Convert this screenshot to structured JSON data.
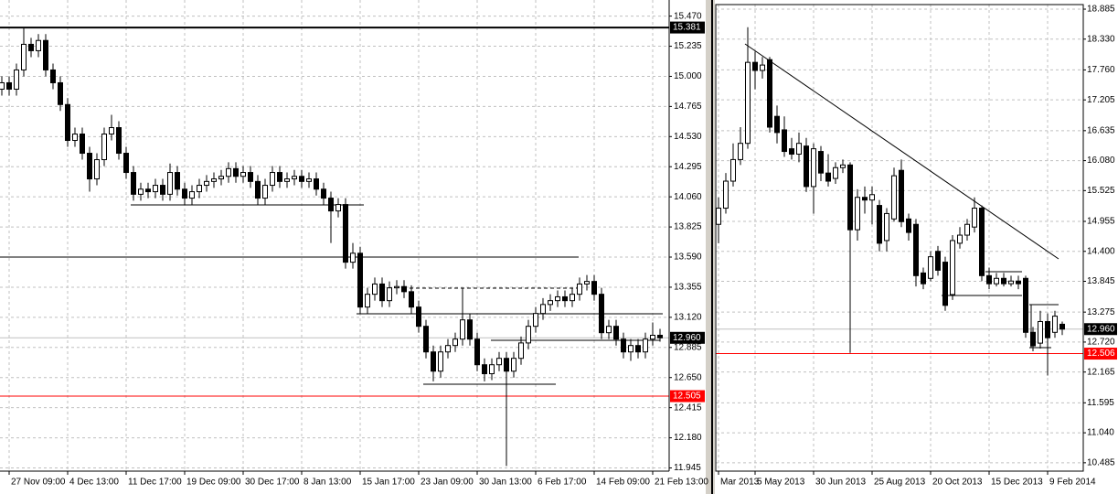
{
  "chart_data": [
    {
      "type": "candlestick",
      "categories": [
        null,
        "27 Nov 09:00",
        null,
        null,
        null,
        null,
        null,
        null,
        null,
        "4 Dec 13:00",
        null,
        null,
        null,
        null,
        null,
        null,
        null,
        "11 Dec 17:00",
        null,
        null,
        null,
        null,
        null,
        null,
        null,
        "19 Dec 09:00",
        null,
        null,
        null,
        null,
        null,
        null,
        null,
        "30 Dec 17:00",
        null,
        null,
        null,
        null,
        null,
        null,
        null,
        "8 Jan 13:00",
        null,
        null,
        null,
        null,
        null,
        null,
        null,
        "15 Jan 17:00",
        null,
        null,
        null,
        null,
        null,
        null,
        null,
        "23 Jan 09:00",
        null,
        null,
        null,
        null,
        null,
        null,
        null,
        "30 Jan 13:00",
        null,
        null,
        null,
        null,
        null,
        null,
        null,
        "6 Feb 17:00",
        null,
        null,
        null,
        null,
        null,
        null,
        null,
        "14 Feb 09:00",
        null,
        null,
        null,
        null,
        null,
        null,
        null,
        "21 Feb 13:00",
        null
      ],
      "open": [
        14.9,
        14.95,
        14.9,
        15.05,
        15.25,
        15.2,
        15.28,
        15.05,
        14.95,
        14.78,
        14.5,
        14.55,
        14.4,
        14.2,
        14.35,
        14.55,
        14.6,
        14.4,
        14.25,
        14.08,
        14.12,
        14.1,
        14.15,
        14.08,
        14.25,
        14.12,
        14.05,
        14.1,
        14.15,
        14.18,
        14.2,
        14.22,
        14.28,
        14.22,
        14.25,
        14.18,
        14.05,
        14.15,
        14.25,
        14.18,
        14.2,
        14.22,
        14.18,
        14.2,
        14.12,
        14.05,
        13.95,
        14.0,
        13.55,
        13.62,
        13.2,
        13.3,
        13.38,
        13.25,
        13.35,
        13.36,
        13.32,
        13.2,
        13.05,
        12.85,
        12.7,
        12.85,
        12.9,
        12.95,
        13.1,
        12.95,
        12.75,
        12.68,
        12.75,
        12.8,
        12.7,
        12.8,
        12.92,
        13.05,
        13.15,
        13.22,
        13.25,
        13.28,
        13.25,
        13.3,
        13.38,
        13.4,
        13.3,
        13.0,
        13.05,
        12.95,
        12.85,
        12.9,
        12.85,
        12.95,
        12.98
      ],
      "high": [
        15.0,
        15.0,
        15.1,
        15.38,
        15.3,
        15.33,
        15.33,
        15.1,
        15.0,
        14.83,
        14.6,
        14.6,
        14.45,
        14.4,
        14.6,
        14.7,
        14.65,
        14.45,
        14.3,
        14.17,
        14.17,
        14.2,
        14.2,
        14.32,
        14.3,
        14.17,
        14.15,
        14.2,
        14.23,
        14.25,
        14.27,
        14.33,
        14.33,
        14.3,
        14.3,
        14.23,
        14.2,
        14.3,
        14.3,
        14.25,
        14.27,
        14.27,
        14.25,
        14.25,
        14.17,
        14.1,
        14.05,
        14.05,
        13.7,
        13.67,
        13.35,
        13.43,
        13.43,
        13.4,
        13.41,
        13.41,
        13.37,
        13.25,
        13.1,
        12.9,
        12.9,
        12.95,
        13.0,
        13.35,
        13.15,
        13.0,
        12.8,
        12.8,
        12.85,
        12.85,
        12.85,
        12.97,
        13.1,
        13.2,
        13.27,
        13.3,
        13.33,
        13.33,
        13.35,
        13.43,
        13.45,
        13.45,
        13.35,
        13.1,
        13.1,
        13.0,
        12.95,
        12.95,
        13.0,
        13.08,
        13.03
      ],
      "low": [
        14.85,
        14.85,
        14.85,
        15.0,
        15.15,
        15.15,
        15.0,
        14.9,
        14.73,
        14.45,
        14.45,
        14.35,
        14.1,
        14.15,
        14.3,
        14.5,
        14.35,
        14.2,
        14.03,
        14.03,
        14.05,
        14.05,
        14.03,
        14.03,
        14.07,
        14.0,
        14.0,
        14.05,
        14.1,
        14.13,
        14.15,
        14.17,
        14.17,
        14.17,
        14.13,
        14.0,
        14.0,
        14.1,
        14.13,
        14.13,
        14.15,
        14.13,
        14.13,
        14.07,
        14.0,
        13.7,
        13.9,
        13.5,
        13.5,
        13.15,
        13.15,
        13.25,
        13.2,
        13.2,
        13.3,
        13.27,
        13.15,
        13.0,
        12.8,
        12.62,
        12.65,
        12.8,
        12.85,
        12.9,
        12.9,
        12.7,
        12.62,
        12.63,
        12.7,
        11.96,
        12.65,
        12.75,
        12.87,
        13.0,
        13.1,
        13.17,
        13.2,
        13.2,
        13.2,
        13.25,
        13.33,
        13.25,
        12.95,
        12.95,
        12.9,
        12.8,
        12.78,
        12.8,
        12.8,
        12.9,
        12.93
      ],
      "close": [
        14.95,
        14.9,
        15.05,
        15.25,
        15.2,
        15.28,
        15.05,
        14.95,
        14.78,
        14.5,
        14.55,
        14.4,
        14.2,
        14.35,
        14.55,
        14.6,
        14.4,
        14.25,
        14.08,
        14.12,
        14.1,
        14.15,
        14.08,
        14.25,
        14.12,
        14.05,
        14.1,
        14.15,
        14.18,
        14.2,
        14.22,
        14.28,
        14.22,
        14.25,
        14.18,
        14.05,
        14.15,
        14.25,
        14.18,
        14.2,
        14.22,
        14.18,
        14.2,
        14.12,
        14.05,
        13.95,
        14.0,
        13.55,
        13.62,
        13.2,
        13.3,
        13.38,
        13.25,
        13.35,
        13.36,
        13.32,
        13.2,
        13.05,
        12.85,
        12.7,
        12.85,
        12.9,
        12.95,
        13.1,
        12.95,
        12.75,
        12.68,
        12.75,
        12.8,
        12.7,
        12.8,
        12.92,
        13.05,
        13.15,
        13.22,
        13.25,
        13.28,
        13.25,
        13.3,
        13.38,
        13.4,
        13.3,
        13.0,
        13.05,
        12.95,
        12.85,
        12.9,
        12.85,
        12.95,
        12.98,
        12.96
      ],
      "ylim": [
        11.92,
        15.56
      ],
      "yticks": [
        {
          "value": 15.47,
          "label": "15.470"
        },
        15.235,
        {
          "value": 15.0,
          "label": "15.000"
        },
        14.765,
        {
          "value": 14.53,
          "label": "14.530"
        },
        14.295,
        {
          "value": 14.06,
          "label": "14.060"
        },
        13.825,
        {
          "value": 13.59,
          "label": "13.590"
        },
        13.355,
        {
          "value": 13.12,
          "label": "13.120"
        },
        12.885,
        {
          "value": 12.65,
          "label": "12.650"
        },
        12.415,
        {
          "value": 12.18,
          "label": "12.180"
        },
        11.945
      ],
      "grid": true,
      "levels": [
        {
          "value": 15.381,
          "color": "#000000",
          "label_color": "#000000"
        },
        {
          "value": 12.96,
          "label": "12.960",
          "color": "#c0c0c0",
          "label_color": "#000000"
        },
        {
          "value": 12.505,
          "color": "#ff0000",
          "label_color": "#ff0000"
        }
      ]
    },
    {
      "type": "candlestick",
      "categories": [
        "Mar 2013",
        null,
        null,
        null,
        null,
        "5 May 2013",
        null,
        null,
        null,
        null,
        null,
        null,
        null,
        "30 Jun 2013",
        null,
        null,
        null,
        null,
        null,
        null,
        null,
        "25 Aug 2013",
        null,
        null,
        null,
        null,
        null,
        null,
        null,
        "20 Oct 2013",
        null,
        null,
        null,
        null,
        null,
        null,
        null,
        "15 Dec 2013",
        null,
        null,
        null,
        null,
        null,
        null,
        null,
        "9 Feb 2014",
        null,
        null
      ],
      "open": [
        14.9,
        15.2,
        15.7,
        16.1,
        16.4,
        17.9,
        17.75,
        17.95,
        16.9,
        16.65,
        16.3,
        16.2,
        16.35,
        15.6,
        16.25,
        15.85,
        15.75,
        15.95,
        16.0,
        14.8,
        15.4,
        15.35,
        15.25,
        14.6,
        15.0,
        15.9,
        15.0,
        14.9,
        14.0,
        13.9,
        14.4,
        14.2,
        13.6,
        14.55,
        14.7,
        14.85,
        15.2,
        13.95,
        13.8,
        13.9,
        13.8,
        13.85,
        13.9,
        12.9,
        12.7,
        13.1,
        12.9,
        13.05
      ],
      "high": [
        15.4,
        15.85,
        16.4,
        16.7,
        18.55,
        18.1,
        18.0,
        18.0,
        17.1,
        16.9,
        16.5,
        16.6,
        16.5,
        16.4,
        16.35,
        16.2,
        16.05,
        16.1,
        16.05,
        15.55,
        15.6,
        15.6,
        15.35,
        15.2,
        15.95,
        16.1,
        15.1,
        15.0,
        14.1,
        14.4,
        14.5,
        14.3,
        14.7,
        14.85,
        15.0,
        15.4,
        15.25,
        14.1,
        14.0,
        14.0,
        13.95,
        13.95,
        13.95,
        13.0,
        13.3,
        13.25,
        13.3,
        13.1
      ],
      "low": [
        14.55,
        15.1,
        15.6,
        16.0,
        16.3,
        17.4,
        17.6,
        16.6,
        16.4,
        16.15,
        16.1,
        16.05,
        15.5,
        15.1,
        15.7,
        15.6,
        15.65,
        15.85,
        12.52,
        14.6,
        15.1,
        14.9,
        14.4,
        14.4,
        14.95,
        14.85,
        14.6,
        13.75,
        13.7,
        13.85,
        13.95,
        13.3,
        13.5,
        14.45,
        14.6,
        14.75,
        13.85,
        13.7,
        13.75,
        13.75,
        13.75,
        13.7,
        12.8,
        12.55,
        12.6,
        12.1,
        12.8,
        12.85
      ],
      "close": [
        15.2,
        15.7,
        16.1,
        16.4,
        17.9,
        17.75,
        17.85,
        16.7,
        16.6,
        16.25,
        16.2,
        16.4,
        15.6,
        16.3,
        15.85,
        15.7,
        15.95,
        16.0,
        14.8,
        15.4,
        15.35,
        15.45,
        14.55,
        15.1,
        15.8,
        14.95,
        14.75,
        13.95,
        13.8,
        14.3,
        14.05,
        13.4,
        14.6,
        14.7,
        14.9,
        15.2,
        13.95,
        13.8,
        13.9,
        13.8,
        13.85,
        13.8,
        12.9,
        12.65,
        13.1,
        12.8,
        13.2,
        12.96
      ],
      "ylim": [
        10.33,
        18.97
      ],
      "yticks": [
        18.885,
        {
          "value": 18.33,
          "label": "18.330"
        },
        {
          "value": 17.76,
          "label": "17.760"
        },
        17.205,
        16.635,
        {
          "value": 16.08,
          "label": "16.080"
        },
        15.525,
        14.955,
        {
          "value": 14.4,
          "label": "14.400"
        },
        13.845,
        13.275,
        {
          "value": 12.72,
          "label": "12.720"
        },
        12.165,
        11.595,
        {
          "value": 11.04,
          "label": "11.040"
        },
        10.485
      ],
      "grid": true,
      "levels": [
        {
          "value": 12.96,
          "label": "12.960",
          "color": "#c0c0c0",
          "label_color": "#000000"
        },
        {
          "value": 12.506,
          "color": "#ff0000",
          "label_color": "#ff0000"
        }
      ]
    }
  ]
}
